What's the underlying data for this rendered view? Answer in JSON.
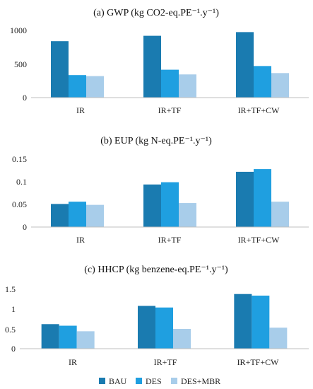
{
  "colors": {
    "BAU": "#1a7bb0",
    "DES": "#1f9fe0",
    "DES+MBR": "#a8cdea",
    "axis": "#bfbfbf"
  },
  "legend": [
    "BAU",
    "DES",
    "DES+MBR"
  ],
  "chart_data": [
    {
      "type": "bar",
      "title": "(a) GWP (kg CO2-eq.PE⁻¹.y⁻¹)",
      "categories": [
        "IR",
        "IR+TF",
        "IR+TF+CW"
      ],
      "series": [
        {
          "name": "BAU",
          "values": [
            840,
            920,
            975
          ]
        },
        {
          "name": "DES",
          "values": [
            335,
            415,
            470
          ]
        },
        {
          "name": "DES+MBR",
          "values": [
            320,
            345,
            365
          ]
        }
      ],
      "ylim": [
        0,
        1000
      ],
      "yticks": [
        0,
        500,
        1000
      ],
      "ytick_labels": [
        "0",
        "500",
        "1000"
      ]
    },
    {
      "type": "bar",
      "title": "(b) EUP (kg N-eq.PE⁻¹.y⁻¹)",
      "categories": [
        "IR",
        "IR+TF",
        "IR+TF+CW"
      ],
      "series": [
        {
          "name": "BAU",
          "values": [
            0.051,
            0.094,
            0.122
          ]
        },
        {
          "name": "DES",
          "values": [
            0.056,
            0.099,
            0.128
          ]
        },
        {
          "name": "DES+MBR",
          "values": [
            0.049,
            0.053,
            0.056
          ]
        }
      ],
      "ylim": [
        0,
        0.15
      ],
      "yticks": [
        0,
        0.05,
        0.1,
        0.15
      ],
      "ytick_labels": [
        "0",
        "0.05",
        "0.1",
        "0.15"
      ]
    },
    {
      "type": "bar",
      "title": "(c) HHCP (kg benzene-eq.PE⁻¹.y⁻¹)",
      "categories": [
        "IR",
        "IR+TF",
        "IR+TF+CW"
      ],
      "series": [
        {
          "name": "BAU",
          "values": [
            0.62,
            1.08,
            1.38
          ]
        },
        {
          "name": "DES",
          "values": [
            0.58,
            1.04,
            1.34
          ]
        },
        {
          "name": "DES+MBR",
          "values": [
            0.44,
            0.5,
            0.53
          ]
        }
      ],
      "ylim": [
        0,
        1.5
      ],
      "yticks": [
        0,
        0.5,
        1,
        1.5
      ],
      "ytick_labels": [
        "0",
        "0.5",
        "1",
        "1.5"
      ]
    }
  ]
}
